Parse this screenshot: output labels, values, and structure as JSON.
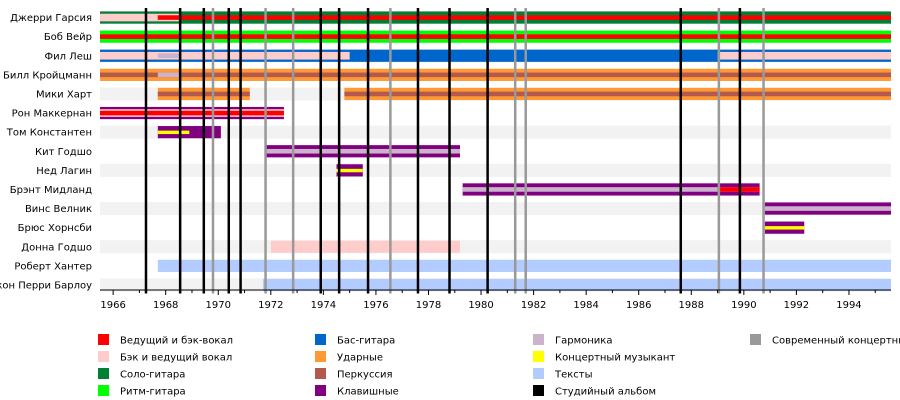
{
  "chart_data": {
    "type": "timeline",
    "xlim": [
      1965.5,
      1995.6
    ],
    "x_ticks": [
      "1966",
      "1968",
      "1970",
      "1972",
      "1974",
      "1976",
      "1978",
      "1980",
      "1982",
      "1984",
      "1986",
      "1988",
      "1990",
      "1992",
      "1994"
    ],
    "members": [
      "Джерри Гарсия",
      "Боб Вейр",
      "Фил Леш",
      "Билл Кройцманн",
      "Мики Харт",
      "Рон Маккернан",
      "Том Константен",
      "Кит Годшо",
      "Нед Лагин",
      "Брэнт Мидланд",
      "Винс Велник",
      "Брюс Хорнсби",
      "Донна Годшо",
      "Роберт Хантер",
      "Джон Перри Барлоу"
    ],
    "roles": {
      "lead_vocals": {
        "label": "Ведущий и бэк-вокал",
        "color": "#ff0000"
      },
      "backing_vocals": {
        "label": "Бэк и ведущий вокал",
        "color": "#ffcccc"
      },
      "lead_guitar": {
        "label": "Соло-гитара",
        "color": "#008033"
      },
      "rhythm_guitar": {
        "label": "Ритм-гитара",
        "color": "#00ff00"
      },
      "bass": {
        "label": "Бас-гитара",
        "color": "#0066cc"
      },
      "drums": {
        "label": "Ударные",
        "color": "#ff9933"
      },
      "percussion": {
        "label": "Перкуссия",
        "color": "#b3594d"
      },
      "keyboards": {
        "label": "Клавишные",
        "color": "#800080"
      },
      "harmonica": {
        "label": "Гармоника",
        "color": "#ccb3cc"
      },
      "touring": {
        "label": "Концертный музыкант",
        "color": "#ffff00"
      },
      "lyrics": {
        "label": "Тексты",
        "color": "#b3ccff"
      },
      "studio_album": {
        "label": "Студийный альбом",
        "color": "#000000"
      },
      "live_album": {
        "label": "Современный концертный",
        "color": "#999999"
      }
    },
    "legend_layout": [
      [
        "lead_vocals",
        "backing_vocals",
        "lead_guitar",
        "rhythm_guitar"
      ],
      [
        "bass",
        "drums",
        "percussion",
        "keyboards"
      ],
      [
        "harmonica",
        "touring",
        "lyrics",
        "studio_album"
      ],
      [
        "live_album"
      ]
    ],
    "bars": [
      {
        "member": 0,
        "start": 1965.5,
        "end": 1995.6,
        "role": "lead_guitar"
      },
      {
        "member": 0,
        "start": 1965.5,
        "end": 1967.7,
        "role": "backing_vocals"
      },
      {
        "member": 0,
        "start": 1967.7,
        "end": 1995.6,
        "role": "lead_vocals"
      },
      {
        "member": 0,
        "start": 1967.7,
        "end": 1968.6,
        "role": "backing_vocals"
      },
      {
        "member": 1,
        "start": 1965.5,
        "end": 1995.6,
        "role": "rhythm_guitar"
      },
      {
        "member": 1,
        "start": 1965.5,
        "end": 1995.6,
        "role": "lead_vocals"
      },
      {
        "member": 2,
        "start": 1965.5,
        "end": 1995.6,
        "role": "bass"
      },
      {
        "member": 2,
        "start": 1965.5,
        "end": 1975.0,
        "role": "backing_vocals"
      },
      {
        "member": 2,
        "start": 1989.0,
        "end": 1995.6,
        "role": "backing_vocals"
      },
      {
        "member": 2,
        "start": 1967.7,
        "end": 1968.6,
        "role": "harmonica"
      },
      {
        "member": 3,
        "start": 1965.5,
        "end": 1995.6,
        "role": "drums"
      },
      {
        "member": 3,
        "start": 1965.5,
        "end": 1995.6,
        "role": "percussion"
      },
      {
        "member": 3,
        "start": 1967.7,
        "end": 1968.6,
        "role": "harmonica"
      },
      {
        "member": 4,
        "start": 1967.7,
        "end": 1971.2,
        "role": "drums"
      },
      {
        "member": 4,
        "start": 1967.7,
        "end": 1971.2,
        "role": "percussion"
      },
      {
        "member": 4,
        "start": 1968.6,
        "end": 1970.0,
        "role": "drums"
      },
      {
        "member": 4,
        "start": 1974.8,
        "end": 1995.6,
        "role": "drums"
      },
      {
        "member": 4,
        "start": 1974.8,
        "end": 1995.6,
        "role": "percussion"
      },
      {
        "member": 5,
        "start": 1965.5,
        "end": 1972.5,
        "role": "keyboards"
      },
      {
        "member": 5,
        "start": 1965.5,
        "end": 1972.5,
        "role": "backing_vocals"
      },
      {
        "member": 5,
        "start": 1965.5,
        "end": 1972.5,
        "role": "lead_vocals"
      },
      {
        "member": 6,
        "start": 1967.7,
        "end": 1970.1,
        "role": "keyboards"
      },
      {
        "member": 6,
        "start": 1967.7,
        "end": 1968.9,
        "role": "touring"
      },
      {
        "member": 7,
        "start": 1971.8,
        "end": 1979.2,
        "role": "keyboards"
      },
      {
        "member": 7,
        "start": 1971.8,
        "end": 1979.2,
        "role": "harmonica"
      },
      {
        "member": 8,
        "start": 1974.5,
        "end": 1975.5,
        "role": "keyboards"
      },
      {
        "member": 8,
        "start": 1974.5,
        "end": 1975.5,
        "role": "touring"
      },
      {
        "member": 9,
        "start": 1979.3,
        "end": 1990.6,
        "role": "keyboards"
      },
      {
        "member": 9,
        "start": 1979.3,
        "end": 1990.6,
        "role": "harmonica"
      },
      {
        "member": 9,
        "start": 1989.0,
        "end": 1990.6,
        "role": "lead_vocals"
      },
      {
        "member": 10,
        "start": 1990.8,
        "end": 1995.6,
        "role": "keyboards"
      },
      {
        "member": 10,
        "start": 1990.8,
        "end": 1995.6,
        "role": "harmonica"
      },
      {
        "member": 11,
        "start": 1990.8,
        "end": 1992.3,
        "role": "keyboards"
      },
      {
        "member": 11,
        "start": 1990.8,
        "end": 1992.3,
        "role": "touring"
      },
      {
        "member": 12,
        "start": 1972.0,
        "end": 1979.2,
        "role": "backing_vocals"
      },
      {
        "member": 13,
        "start": 1967.7,
        "end": 1995.6,
        "role": "lyrics"
      },
      {
        "member": 14,
        "start": 1971.7,
        "end": 1995.6,
        "role": "lyrics"
      }
    ],
    "studio_albums": [
      1967.25,
      1968.55,
      1969.45,
      1970.4,
      1970.85,
      1973.9,
      1974.6,
      1975.7,
      1977.6,
      1978.8,
      1980.25,
      1987.6,
      1989.85
    ],
    "live_albums": [
      1969.8,
      1971.8,
      1972.85,
      1976.55,
      1981.3,
      1981.7,
      1989.05,
      1990.75
    ]
  }
}
